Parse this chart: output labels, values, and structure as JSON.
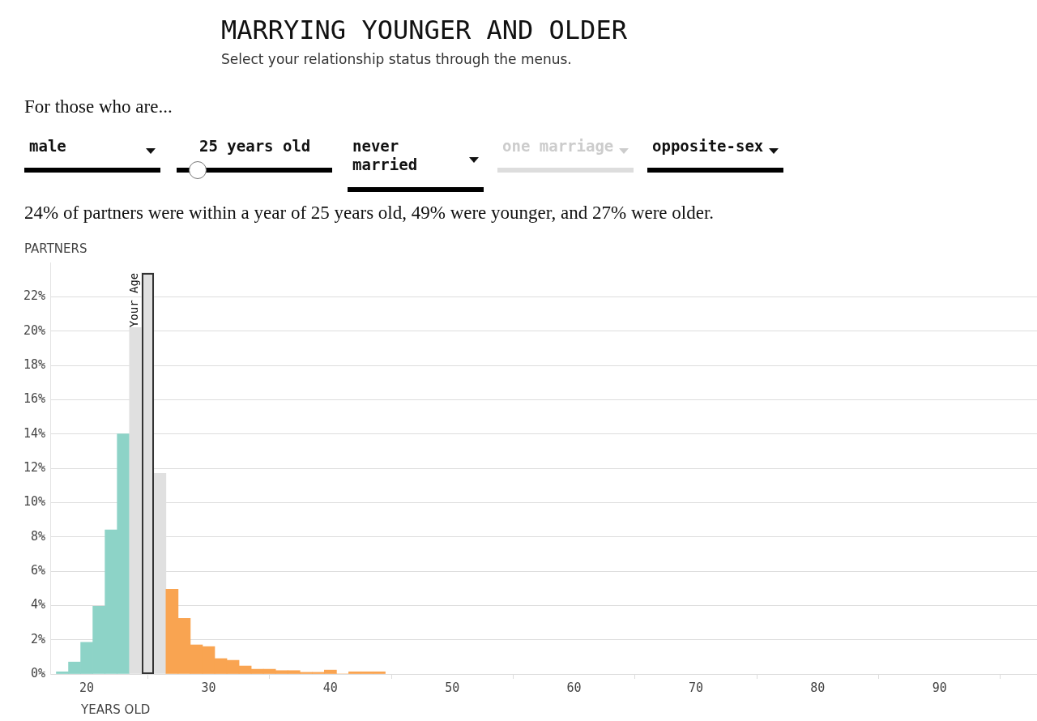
{
  "chart_data": {
    "type": "histogram",
    "title": "MARRYING YOUNGER AND OLDER",
    "subtitle": "Select your relationship status through the menus.",
    "xlabel": "YEARS OLD",
    "ylabel": "PARTNERS",
    "bins": [
      17.5,
      18.5,
      19.5,
      20.5,
      21.5,
      22.5,
      23.5,
      24.5,
      25.5,
      26.5,
      27.5,
      28.5,
      29.5,
      30.5,
      31.5,
      32.5,
      33.5,
      34.5,
      35.5,
      36.5,
      37.5,
      38.5,
      39.5,
      40.5,
      41.5,
      42.5,
      43.5,
      44.5
    ],
    "values": [
      0.13,
      0.7,
      1.85,
      3.95,
      8.4,
      14.0,
      20.2,
      23.4,
      11.7,
      4.95,
      3.25,
      1.7,
      1.6,
      0.9,
      0.8,
      0.47,
      0.28,
      0.28,
      0.2,
      0.2,
      0.1,
      0.1,
      0.23,
      0,
      0.13,
      0.13,
      0.13
    ],
    "colors": [
      "#8dd3c7",
      "#8dd3c7",
      "#8dd3c7",
      "#8dd3c7",
      "#8dd3c7",
      "#8dd3c7",
      "#e0e0e0",
      "#e0e0e0",
      "#e0e0e0",
      "#f9a451",
      "#f9a451",
      "#f9a451",
      "#f9a451",
      "#f9a451",
      "#f9a451",
      "#f9a451",
      "#f9a451",
      "#f9a451",
      "#f9a451",
      "#f9a451",
      "#f9a451",
      "#f9a451",
      "#f9a451",
      "#f9a451",
      "#f9a451",
      "#f9a451",
      "#f9a451"
    ],
    "xlim": [
      17,
      98
    ],
    "xticks": [
      20,
      30,
      40,
      50,
      60,
      70,
      80,
      90
    ],
    "ylim": [
      0,
      24
    ],
    "yticks": [
      {
        "value": 0,
        "label": "0%"
      },
      {
        "value": 2,
        "label": "2%"
      },
      {
        "value": 4,
        "label": "4%"
      },
      {
        "value": 6,
        "label": "6%"
      },
      {
        "value": 8,
        "label": "8%"
      },
      {
        "value": 10,
        "label": "10%"
      },
      {
        "value": 12,
        "label": "12%"
      },
      {
        "value": 14,
        "label": "14%"
      },
      {
        "value": 16,
        "label": "16%"
      },
      {
        "value": 18,
        "label": "18%"
      },
      {
        "value": 20,
        "label": "20%"
      },
      {
        "value": 22,
        "label": "22%"
      }
    ],
    "grid": "y",
    "annotations": [
      {
        "text": "Your Age",
        "x": 25,
        "y": 23.4
      },
      "For those who are...",
      "male",
      "25 years old",
      "never married",
      "one marriage",
      "opposite-sex",
      "24% of partners were within a year of 25 years old, 49% were younger, and 27% were older."
    ]
  }
}
